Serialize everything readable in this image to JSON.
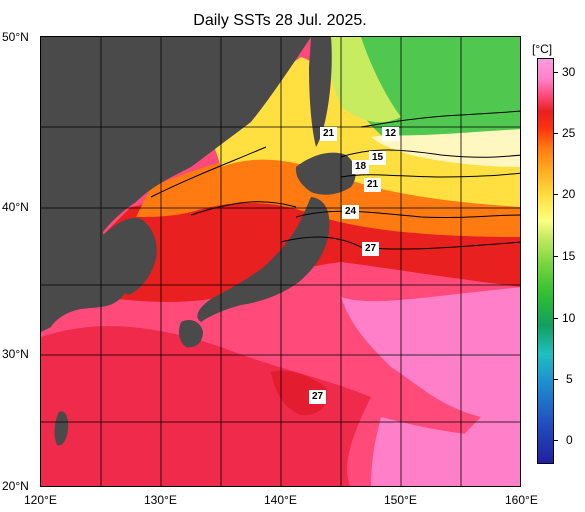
{
  "title": "Daily SSTs 28 Jul. 2025.",
  "lat_labels": [
    "50°N",
    "40°N",
    "30°N",
    "20°N"
  ],
  "lon_labels": [
    "120°E",
    "130°E",
    "140°E",
    "150°E",
    "160°E"
  ],
  "colorbar": {
    "unit": "[°C]",
    "ticks": [
      "30",
      "25",
      "20",
      "15",
      "10",
      "5",
      "0"
    ]
  },
  "isotherm_labels": [
    "21",
    "12",
    "18",
    "15",
    "21",
    "24",
    "27",
    "27"
  ],
  "colors": {
    "land": "#4a4a4a",
    "warm_pink": "#ff4a7a",
    "hot_pink": "#ff80c8",
    "red": "#e82020",
    "orange": "#ff7a10",
    "yellow": "#ffe040",
    "green": "#30c030"
  }
}
